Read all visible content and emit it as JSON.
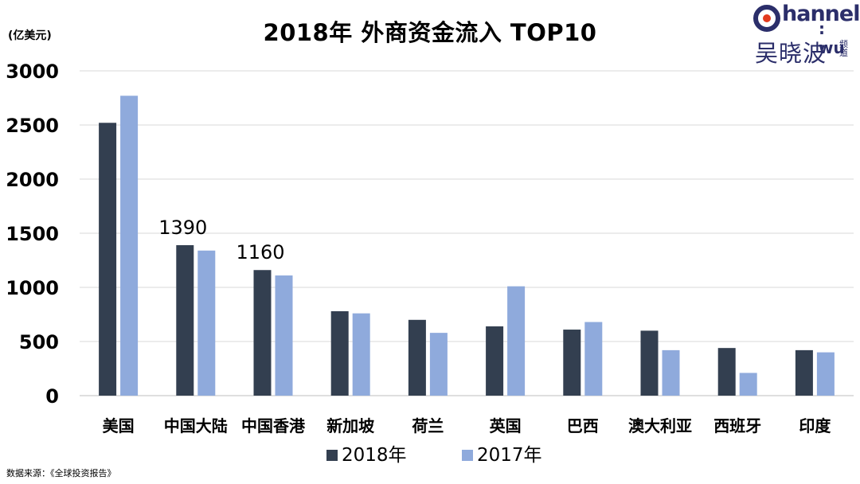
{
  "page": {
    "title": "2018年 外商资金流入 TOP10",
    "unit": "(亿美元)",
    "source": "数据来源：《全球投资报告》"
  },
  "logo": {
    "latin_top": "hannel",
    "latin_bottom": ": wu",
    "chinese": "吴晓波",
    "chinese_small": "频道",
    "accent": "#e33a1e",
    "brand": "#2b2e6a"
  },
  "chart_data": {
    "type": "bar",
    "categories": [
      "美国",
      "中国大陆",
      "中国香港",
      "新加坡",
      "荷兰",
      "英国",
      "巴西",
      "澳大利亚",
      "西班牙",
      "印度"
    ],
    "series": [
      {
        "name": "2018年",
        "color": "#333f50",
        "values": [
          2520,
          1390,
          1160,
          780,
          700,
          640,
          610,
          600,
          440,
          420
        ]
      },
      {
        "name": "2017年",
        "color": "#8faadc",
        "values": [
          2770,
          1340,
          1110,
          760,
          580,
          1010,
          680,
          420,
          210,
          400
        ]
      }
    ],
    "data_labels": [
      {
        "series": 0,
        "index": 1,
        "text": "1390"
      },
      {
        "series": 0,
        "index": 2,
        "text": "1160"
      }
    ],
    "yticks": [
      "0",
      "500",
      "1000",
      "1500",
      "2000",
      "2500",
      "3000"
    ],
    "ylim": [
      0,
      3000
    ],
    "grid": true,
    "legend": "bottom"
  }
}
